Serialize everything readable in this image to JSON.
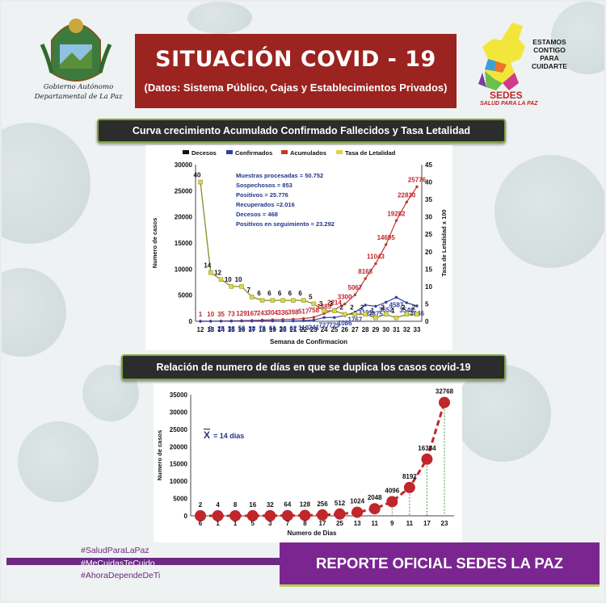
{
  "header": {
    "title": "SITUACIÓN  COVID - 19",
    "subtitle": "(Datos: Sistema Público, Cajas y Establecimientos Privados)"
  },
  "gov_logo": {
    "line1": "Gobierno Autónomo",
    "line2": "Departamental de La Paz"
  },
  "sedes": {
    "slogan": [
      "ESTAMOS",
      "CONTIGO",
      "PARA",
      "CUIDARTE"
    ],
    "name": "SEDES",
    "tagline": "SALUD PARA LA PAZ"
  },
  "banner1": "Curva crecimiento Acumulado Confirmado Fallecidos y Tasa Letalidad",
  "banner2": "Relación de numero de días en que se duplica los casos covid-19",
  "hashtags": [
    "#SaludParaLaPaz",
    "#MeCuidasTeCuido",
    "#AhoraDependeDeTi"
  ],
  "report": "REPORTE OFICIAL SEDES LA PAZ",
  "colors": {
    "header_red": "#9b2320",
    "purple": "#7b2690",
    "accum_line": "#c0392b",
    "confirmed": "#2f3f9e",
    "tasa": "#d8d84a",
    "bar_red": "#c0262b"
  },
  "chart_data": [
    {
      "type": "line",
      "legend": [
        "Decesos",
        "Confirmados",
        "Acumulados",
        "Tasa de Letalidad"
      ],
      "xlabel": "Semana de Confirmacion",
      "ylabel": "Numero de casos",
      "y2label": "Tasa de Letalidad x 100",
      "x": [
        "12",
        "13",
        "14",
        "15",
        "16",
        "17",
        "18",
        "19",
        "20",
        "21",
        "22",
        "23",
        "24",
        "25",
        "26",
        "27",
        "28",
        "29",
        "30",
        "31",
        "32",
        "33"
      ],
      "ylim": [
        0,
        30000
      ],
      "yticks": [
        "0",
        "5000",
        "10000",
        "15000",
        "20000",
        "25000",
        "30000"
      ],
      "y2lim": [
        0,
        45
      ],
      "y2ticks": [
        "0",
        "5",
        "10",
        "15",
        "20",
        "25",
        "30",
        "35",
        "40",
        "45"
      ],
      "series": [
        {
          "name": "Acumulados",
          "values": [
            1,
            10,
            35,
            73,
            129,
            167,
            243,
            304,
            336,
            398,
            517,
            758,
            1485,
            2214,
            3300,
            5067,
            8168,
            11043,
            14695,
            19282,
            22830,
            25776
          ],
          "labels": [
            "1",
            "10",
            "35",
            "73",
            "129",
            "167",
            "243",
            "304",
            "336",
            "398",
            "517",
            "758",
            "1485",
            "2214",
            "3300",
            "5067",
            "8168",
            "11043",
            "14695",
            "19282",
            "22830",
            "25776"
          ]
        },
        {
          "name": "Confirmados",
          "values": [
            1,
            9,
            25,
            38,
            56,
            38,
            76,
            61,
            32,
            62,
            119,
            241,
            727,
            729,
            1086,
            1767,
            3101,
            2875,
            3652,
            4587,
            3548,
            2946
          ],
          "labels": [
            "",
            "9",
            "25",
            "38",
            "56",
            "38",
            "76",
            "61",
            "32",
            "62",
            "119",
            "241",
            "727",
            "729",
            "1086",
            "1767",
            "3101",
            "2875",
            "3652",
            "4587",
            "3548",
            "2946"
          ]
        },
        {
          "name": "Tasa de Letalidad",
          "values": [
            40,
            14,
            12,
            10,
            10,
            7,
            6,
            6,
            6,
            6,
            6,
            5,
            3,
            3,
            2,
            2,
            2,
            1,
            2,
            1,
            2,
            2
          ],
          "labels": [
            "40",
            "14",
            "12",
            "10",
            "10",
            "7",
            "6",
            "6",
            "6",
            "6",
            "6",
            "5",
            "3",
            "3",
            "2",
            "2",
            "2",
            "1",
            "2",
            "1",
            "2",
            "2"
          ]
        }
      ],
      "annotation": [
        "Muestras procesadas = 50.752",
        "Sospechosos  = 853",
        "Positivos = 25.776",
        "Recuperados =2.016",
        "Decesos = 468",
        "Positivos en seguimiento = 23.292"
      ]
    },
    {
      "type": "line",
      "xlabel": "Numero de Dias",
      "ylabel": "Numero de casos",
      "x": [
        "6",
        "1",
        "1",
        "5",
        "3",
        "7",
        "8",
        "17",
        "25",
        "13",
        "11",
        "9",
        "11",
        "17",
        "23"
      ],
      "ylim": [
        0,
        35000
      ],
      "yticks": [
        "0",
        "5000",
        "10000",
        "15000",
        "20000",
        "25000",
        "30000",
        "35000"
      ],
      "values": [
        2,
        4,
        8,
        16,
        32,
        64,
        128,
        256,
        512,
        1024,
        2048,
        4096,
        8192,
        16384,
        32768
      ],
      "labels": [
        "2",
        "4",
        "8",
        "16",
        "32",
        "64",
        "128",
        "256",
        "512",
        "1024",
        "2048",
        "4096",
        "8192",
        "16384",
        "32768"
      ],
      "mean_label": "X",
      "mean_text": "= 14 dias"
    }
  ]
}
